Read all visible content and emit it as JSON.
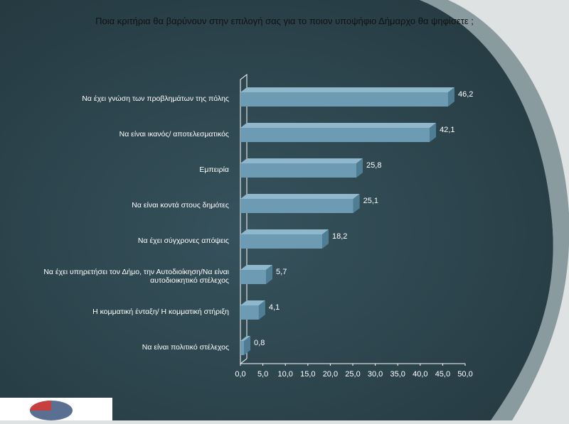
{
  "page": {
    "title": "Ποια κριτήρια θα βαρύνουν στην επιλογή σας για το ποιον υποψήφιο Δήμαρχο θα ψηφίσετε ;"
  },
  "colors": {
    "background_dark": "#2d4650",
    "background_light": "#dfe2e3",
    "bar_front": "#6d9bb3",
    "bar_top": "#8fb8cc",
    "text": "#ffffff"
  },
  "chart_data": {
    "type": "bar",
    "orientation": "horizontal",
    "style": "3d",
    "categories": [
      "Να έχει γνώση των προβλημάτων της πόλης",
      "Να είναι ικανός/ αποτελεσματικός",
      "Εμπειρία",
      "Να είναι κοντά στους δημότες",
      "Να έχει σύγχρονες απόψεις",
      "Να έχει υπηρετήσει τον Δήμο, την Αυτοδιοίκηση/Να είναι αυτοδιοικητικό στέλεχος",
      "Η κομματική ένταξη/ Η κομματική στήριξη",
      "Να είναι πολιτικό στέλεχος"
    ],
    "category_lines": [
      [
        "Να έχει γνώση των προβλημάτων της πόλης"
      ],
      [
        "Να είναι ικανός/ αποτελεσματικός"
      ],
      [
        "Εμπειρία"
      ],
      [
        "Να είναι κοντά στους δημότες"
      ],
      [
        "Να έχει σύγχρονες απόψεις"
      ],
      [
        "Να έχει υπηρετήσει τον Δήμο, την Αυτοδιοίκηση/Να είναι",
        "αυτοδιοικητικό στέλεχος"
      ],
      [
        "Η κομματική ένταξη/ Η κομματική στήριξη"
      ],
      [
        "Να είναι πολιτικό στέλεχος"
      ]
    ],
    "values": [
      46.2,
      42.1,
      25.8,
      25.1,
      18.2,
      5.7,
      4.1,
      0.8
    ],
    "value_labels": [
      "46,2",
      "42,1",
      "25,8",
      "25,1",
      "18,2",
      "5,7",
      "4,1",
      "0,8"
    ],
    "xlim": [
      0,
      50
    ],
    "xticks": [
      "0,0",
      "5,0",
      "10,0",
      "15,0",
      "20,0",
      "25,0",
      "30,0",
      "35,0",
      "40,0",
      "45,0",
      "50,0"
    ],
    "xlabel": "",
    "ylabel": "",
    "grid": false,
    "legend": "none"
  }
}
